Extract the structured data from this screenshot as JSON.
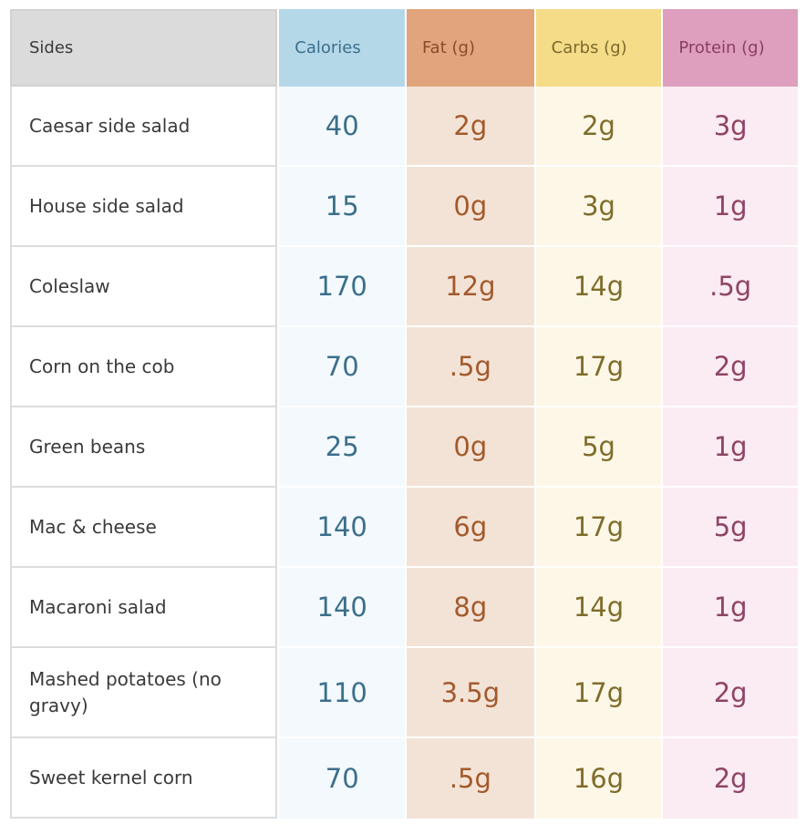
{
  "headers": {
    "sides": "Sides",
    "calories": "Calories",
    "fat": "Fat (g)",
    "carbs": "Carbs (g)",
    "protein": "Protein (g)"
  },
  "rows": [
    {
      "side": "Caesar side salad",
      "calories": "40",
      "fat": "2g",
      "carbs": "2g",
      "protein": "3g"
    },
    {
      "side": "House side salad",
      "calories": "15",
      "fat": "0g",
      "carbs": "3g",
      "protein": "1g"
    },
    {
      "side": "Coleslaw",
      "calories": "170",
      "fat": "12g",
      "carbs": "14g",
      "protein": ".5g"
    },
    {
      "side": "Corn on the cob",
      "calories": "70",
      "fat": ".5g",
      "carbs": "17g",
      "protein": "2g"
    },
    {
      "side": "Green beans",
      "calories": "25",
      "fat": "0g",
      "carbs": "5g",
      "protein": "1g"
    },
    {
      "side": "Mac & cheese",
      "calories": "140",
      "fat": "6g",
      "carbs": "17g",
      "protein": "5g"
    },
    {
      "side": "Macaroni salad",
      "calories": "140",
      "fat": "8g",
      "carbs": "14g",
      "protein": "1g"
    },
    {
      "side": "Mashed potatoes (no gravy)",
      "calories": "110",
      "fat": "3.5g",
      "carbs": "17g",
      "protein": "2g"
    },
    {
      "side": "Sweet kernel corn",
      "calories": "70",
      "fat": ".5g",
      "carbs": "16g",
      "protein": "2g"
    }
  ],
  "colors": {
    "calories_header": "#b5d8e9",
    "fat_header": "#e2a47c",
    "carbs_header": "#f4dc88",
    "protein_header": "#dd9fbd"
  }
}
